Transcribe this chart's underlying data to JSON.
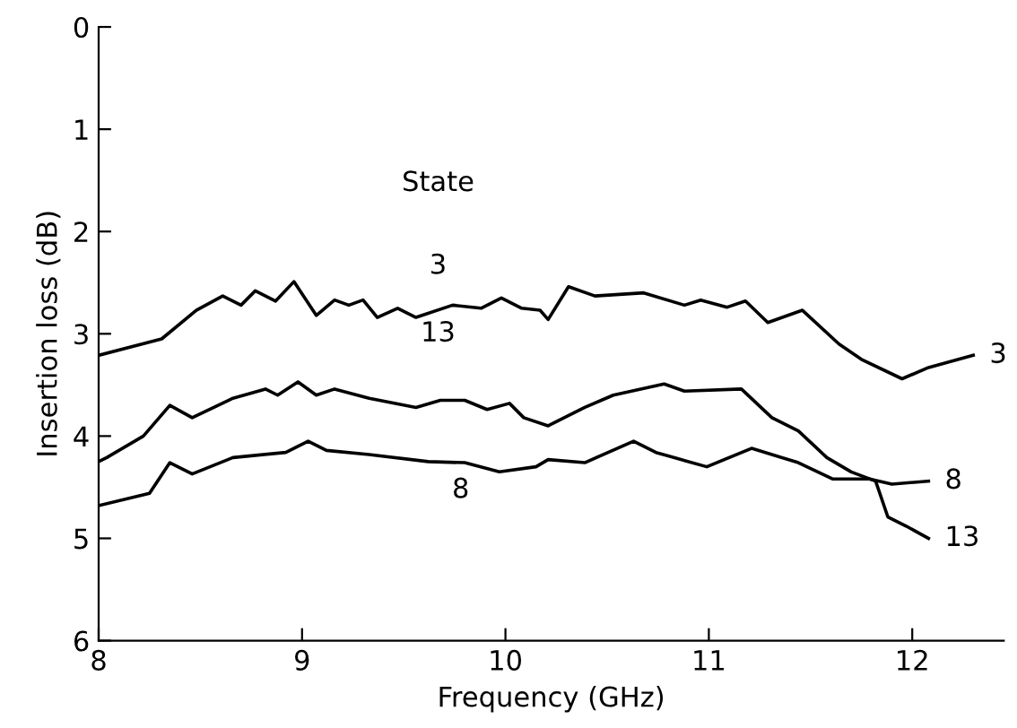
{
  "chart_data": {
    "type": "line",
    "xlabel": "Frequency (GHz)",
    "ylabel": "Insertion loss (dB)",
    "legend_title": "State",
    "xlim": [
      8,
      12.45
    ],
    "xticks": [
      8,
      9,
      10,
      11,
      12
    ],
    "ylim": [
      6,
      0
    ],
    "yticks": [
      0,
      1,
      2,
      3,
      4,
      5,
      6
    ],
    "grid": false,
    "legend": false,
    "marker": "none",
    "line_style": "solid",
    "series": [
      {
        "name": "3",
        "color": "#000000",
        "x": [
          8.0,
          8.31,
          8.48,
          8.61,
          8.7,
          8.77,
          8.87,
          8.96,
          9.07,
          9.16,
          9.23,
          9.3,
          9.37,
          9.47,
          9.56,
          9.74,
          9.88,
          9.98,
          10.08,
          10.17,
          10.21,
          10.31,
          10.44,
          10.68,
          10.88,
          10.96,
          11.09,
          11.18,
          11.29,
          11.46,
          11.64,
          11.75,
          11.95,
          12.08,
          12.3
        ],
        "values": [
          3.21,
          3.05,
          2.77,
          2.63,
          2.72,
          2.58,
          2.68,
          2.49,
          2.82,
          2.67,
          2.72,
          2.67,
          2.84,
          2.75,
          2.84,
          2.72,
          2.75,
          2.65,
          2.75,
          2.77,
          2.86,
          2.54,
          2.63,
          2.6,
          2.72,
          2.67,
          2.74,
          2.68,
          2.89,
          2.77,
          3.1,
          3.25,
          3.44,
          3.33,
          3.21
        ]
      },
      {
        "name": "13",
        "color": "#000000",
        "x": [
          8.0,
          8.04,
          8.22,
          8.35,
          8.46,
          8.66,
          8.82,
          8.88,
          8.98,
          9.07,
          9.16,
          9.33,
          9.56,
          9.68,
          9.8,
          9.91,
          10.02,
          10.09,
          10.21,
          10.39,
          10.53,
          10.78,
          10.88,
          11.16,
          11.31,
          11.44,
          11.58,
          11.7,
          11.82,
          11.88,
          11.97,
          12.08
        ],
        "values": [
          4.25,
          4.21,
          4.0,
          3.7,
          3.82,
          3.63,
          3.54,
          3.6,
          3.47,
          3.6,
          3.54,
          3.63,
          3.72,
          3.65,
          3.65,
          3.74,
          3.68,
          3.82,
          3.9,
          3.72,
          3.6,
          3.49,
          3.56,
          3.54,
          3.82,
          3.95,
          4.21,
          4.35,
          4.44,
          4.79,
          4.88,
          5.0
        ]
      },
      {
        "name": "8",
        "color": "#000000",
        "x": [
          8.0,
          8.25,
          8.35,
          8.46,
          8.66,
          8.92,
          9.03,
          9.12,
          9.33,
          9.62,
          9.8,
          9.97,
          10.15,
          10.21,
          10.39,
          10.63,
          10.74,
          10.99,
          11.21,
          11.44,
          11.61,
          11.79,
          11.9,
          12.08
        ],
        "values": [
          4.68,
          4.56,
          4.26,
          4.37,
          4.21,
          4.16,
          4.05,
          4.14,
          4.18,
          4.25,
          4.26,
          4.35,
          4.3,
          4.23,
          4.26,
          4.05,
          4.16,
          4.3,
          4.12,
          4.26,
          4.42,
          4.42,
          4.47,
          4.44
        ]
      }
    ],
    "annotations": [
      "3",
      "13",
      "8"
    ]
  }
}
